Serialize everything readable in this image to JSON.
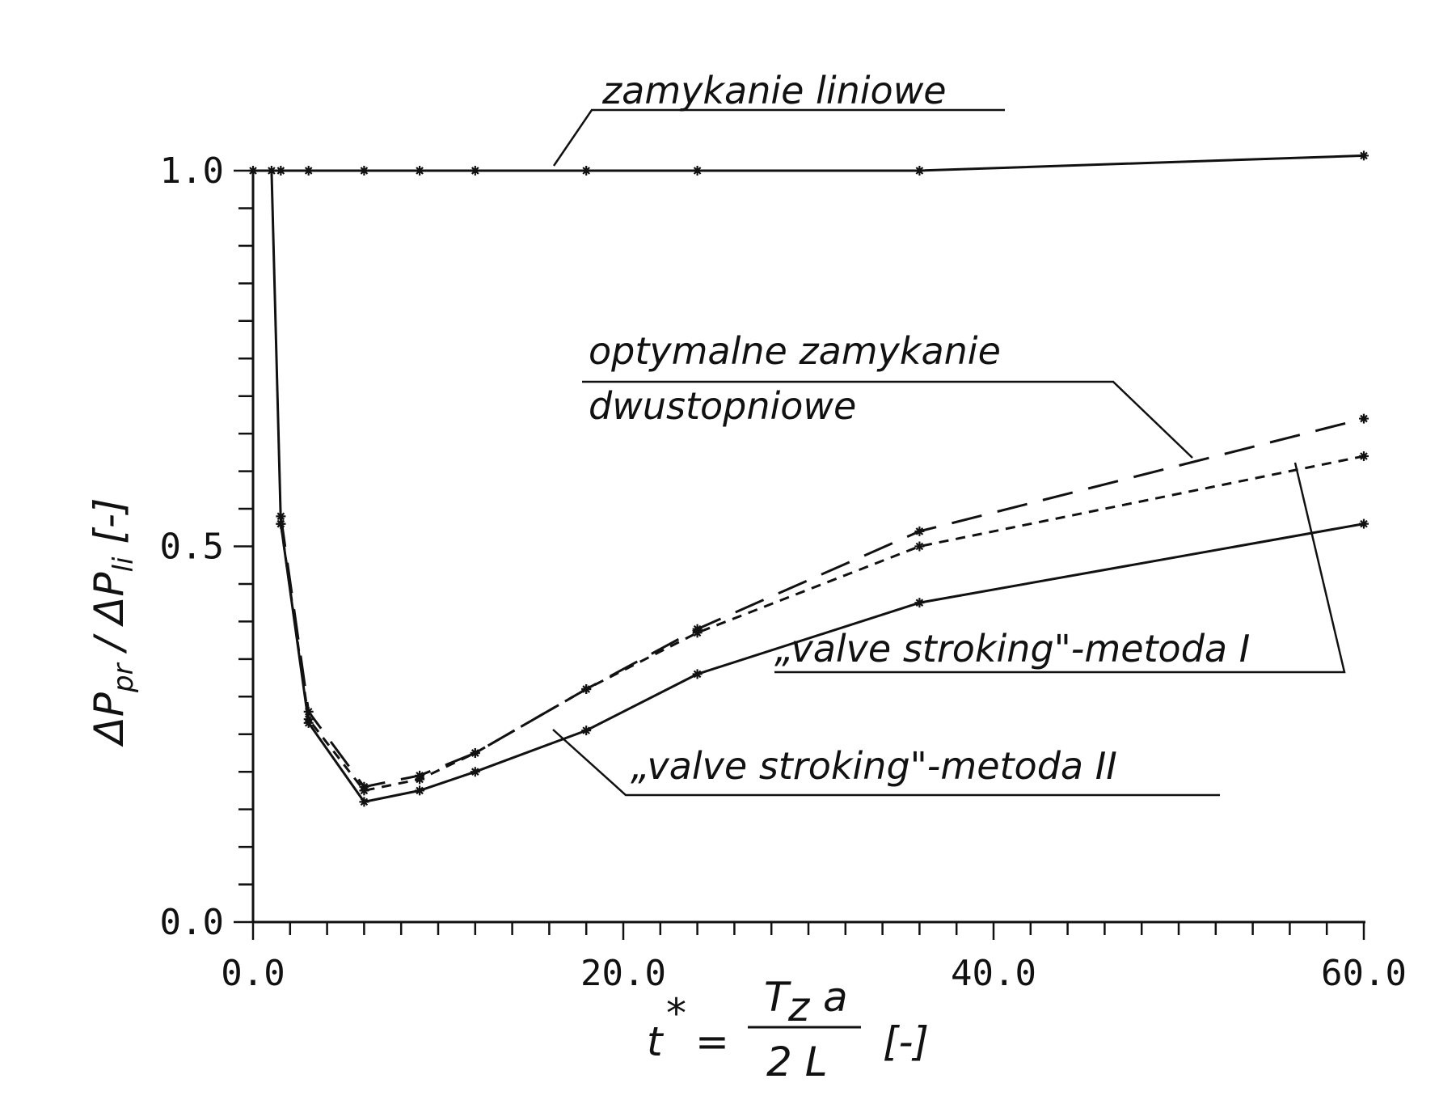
{
  "chart_data": {
    "type": "line",
    "title": "",
    "xlabel": "t* = Tz a / 2 L [-]",
    "ylabel": "ΔPpr / ΔPli [-]",
    "xlim": [
      0,
      60
    ],
    "ylim": [
      0,
      1.0
    ],
    "x_ticks": [
      "0.0",
      "20.0",
      "40.0",
      "60.0"
    ],
    "y_ticks": [
      "0.0",
      "0.5",
      "1.0"
    ],
    "x_label_parts": {
      "t": "t",
      "star": "*",
      "eq": "=",
      "num": "T",
      "num_sub": "z",
      "num_rest": "a",
      "den": "2 L",
      "unit": "[-]"
    },
    "y_label_parts": {
      "p1": "ΔP",
      "sub1": "pr",
      "sep": "/ ΔP",
      "sub2": "li",
      "unit": "[-]"
    },
    "series": [
      {
        "name": "zamykanie liniowe",
        "style": "solid",
        "x": [
          0,
          1.5,
          3,
          6,
          9,
          12,
          18,
          24,
          36,
          60
        ],
        "y": [
          1.0,
          1.0,
          1.0,
          1.0,
          1.0,
          1.0,
          1.0,
          1.0,
          1.0,
          1.02
        ]
      },
      {
        "name": "optymalne zamykanie dwustopniowe",
        "style": "long-dash",
        "x": [
          1.5,
          3,
          6,
          9,
          12,
          18,
          24,
          36,
          60
        ],
        "y": [
          0.54,
          0.28,
          0.18,
          0.195,
          0.225,
          0.31,
          0.39,
          0.52,
          0.67
        ]
      },
      {
        "name": "„valve stroking\"-metoda I",
        "style": "short-dash",
        "x": [
          1.5,
          3,
          6,
          9,
          12,
          18,
          24,
          36,
          60
        ],
        "y": [
          0.53,
          0.27,
          0.175,
          0.19,
          0.225,
          0.31,
          0.385,
          0.5,
          0.62
        ]
      },
      {
        "name": "„valve stroking\"-metoda II",
        "style": "solid",
        "x": [
          1,
          1.5,
          3,
          6,
          9,
          12,
          18,
          24,
          36,
          60
        ],
        "y": [
          1.0,
          0.53,
          0.265,
          0.16,
          0.175,
          0.2,
          0.255,
          0.33,
          0.425,
          0.53
        ]
      }
    ],
    "annotations": {
      "linear": "zamykanie liniowe",
      "optimal_line1": "optymalne zamykanie",
      "optimal_line2": "dwustopniowe",
      "method1": "„valve stroking\"-metoda I",
      "method2": "„valve stroking\"-metoda II"
    },
    "grid": false,
    "legend": "annotations with leader lines"
  }
}
